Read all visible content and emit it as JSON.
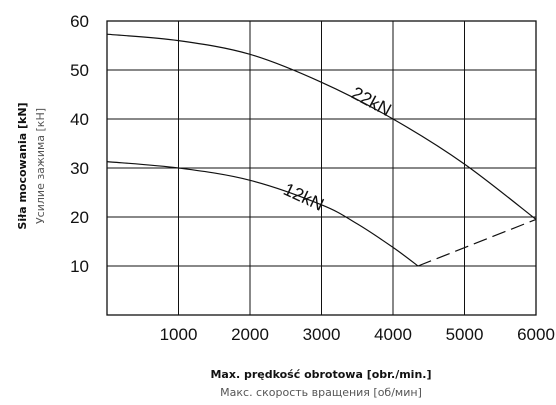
{
  "chart_data": {
    "type": "line",
    "xlabel": "Max. prędkość obrotowa [obr./min.]",
    "xlabel_sub": "Макс. скорость вращения [об/мин]",
    "ylabel": "Siła mocowania [kN]",
    "ylabel_sub": "Усилие зажима [кН]",
    "xlim": [
      0,
      6000
    ],
    "ylim": [
      0,
      60
    ],
    "x_ticks": [
      "1000",
      "2000",
      "3000",
      "4000",
      "5000",
      "6000"
    ],
    "y_ticks": [
      "10",
      "20",
      "30",
      "40",
      "50",
      "60"
    ],
    "grid": true,
    "series": [
      {
        "name": "22kN",
        "style": "solid",
        "x": [
          0,
          1000,
          2000,
          3000,
          4000,
          5000,
          6000
        ],
        "y": [
          57.3,
          56.0,
          53.2,
          47.5,
          40.0,
          30.8,
          19.5
        ]
      },
      {
        "name": "12kN",
        "style": "solid",
        "x": [
          0,
          1000,
          2000,
          3000,
          3500,
          4000,
          4350
        ],
        "y": [
          31.3,
          30.0,
          27.5,
          22.5,
          18.6,
          13.8,
          10.0
        ]
      },
      {
        "name": "",
        "style": "dashed",
        "x": [
          4350,
          6000
        ],
        "y": [
          10.0,
          19.5
        ]
      }
    ],
    "annotations": [
      {
        "text": "22kN",
        "x": 3400,
        "y": 44.5,
        "rotation": 28
      },
      {
        "text": "12kN",
        "x": 2450,
        "y": 24.8,
        "rotation": 25
      }
    ]
  }
}
